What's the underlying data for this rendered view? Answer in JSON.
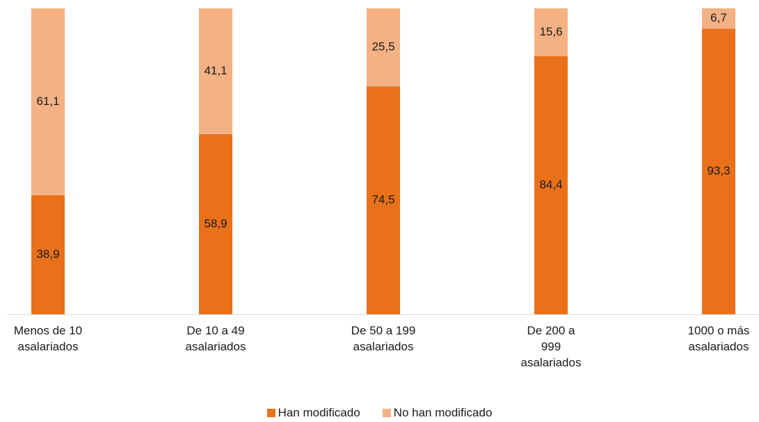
{
  "chart_data": {
    "type": "stacked_bar",
    "categories": [
      "Menos de 10 asalariados",
      "De 10 a 49 asalariados",
      "De 50 a 199 asalariados",
      "De 200 a 999 asalariados",
      "1000 o más asalariados"
    ],
    "series": [
      {
        "name": "Han modificado",
        "color": "#e8711a",
        "values": [
          38.9,
          58.9,
          74.5,
          84.4,
          93.3
        ],
        "value_labels": [
          "38,9",
          "58,9",
          "74,5",
          "84,4",
          "93,3"
        ]
      },
      {
        "name": "No han modificado",
        "color": "#f4b183",
        "values": [
          61.1,
          41.1,
          25.5,
          15.6,
          6.7
        ],
        "value_labels": [
          "61,1",
          "41,1",
          "25,5",
          "15,6",
          "6,7"
        ]
      }
    ],
    "ylim": [
      0,
      100
    ],
    "legend": "bottom"
  }
}
